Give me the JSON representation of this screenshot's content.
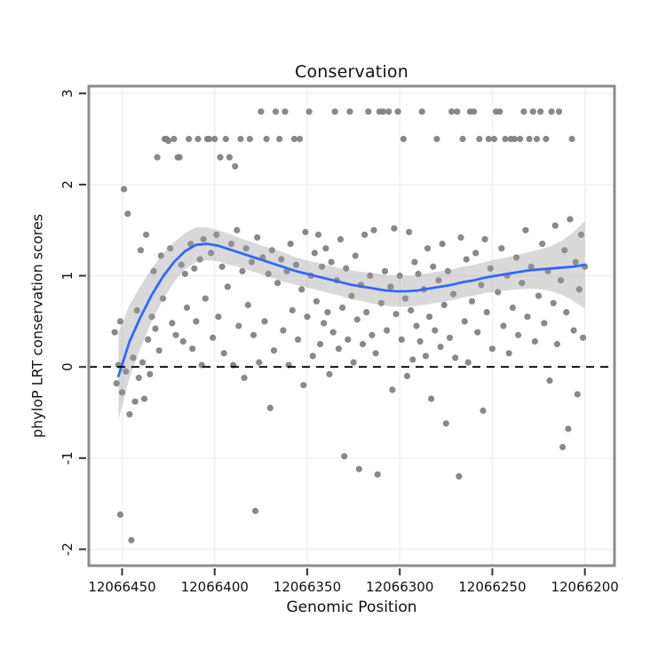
{
  "figure": {
    "title": "Conservation",
    "xlabel": "Genomic Position",
    "ylabel": "phyloP LRT conservation scores"
  },
  "chart_data": {
    "type": "scatter",
    "title": "Conservation",
    "xlabel": "Genomic Position",
    "ylabel": "phyloP LRT conservation scores",
    "x_axis": {
      "ticks": [
        12066450,
        12066400,
        12066350,
        12066300,
        12066250,
        12066200
      ],
      "reversed": true,
      "range": [
        12066468,
        12066184
      ]
    },
    "y_axis": {
      "ticks": [
        -2,
        -1,
        0,
        1,
        2,
        3
      ],
      "range": [
        -2.18,
        3.08
      ]
    },
    "zero_line": {
      "y": 0,
      "style": "dashed",
      "color": "#000000"
    },
    "grid": true,
    "legend": "none",
    "colors": {
      "points": "#7f7f7f",
      "smooth_line": "#3366FF",
      "confidence_band": "#9a9a9a",
      "panel_border": "#8c8c8c",
      "grid": "#f0f0f0",
      "tick": "#333333"
    },
    "points": [
      [
        12066454,
        0.38
      ],
      [
        12066453,
        -0.18
      ],
      [
        12066452,
        0.02
      ],
      [
        12066451,
        -1.62
      ],
      [
        12066451,
        0.5
      ],
      [
        12066450,
        -0.28
      ],
      [
        12066449,
        1.95
      ],
      [
        12066448,
        -0.05
      ],
      [
        12066447,
        1.68
      ],
      [
        12066446,
        -0.52
      ],
      [
        12066445,
        -1.9
      ],
      [
        12066444,
        0.1
      ],
      [
        12066443,
        -0.38
      ],
      [
        12066442,
        0.62
      ],
      [
        12066441,
        -0.12
      ],
      [
        12066440,
        1.28
      ],
      [
        12066439,
        0.05
      ],
      [
        12066438,
        -0.35
      ],
      [
        12066437,
        1.45
      ],
      [
        12066436,
        0.3
      ],
      [
        12066435,
        -0.08
      ],
      [
        12066434,
        0.55
      ],
      [
        12066433,
        1.05
      ],
      [
        12066432,
        0.42
      ],
      [
        12066431,
        2.3
      ],
      [
        12066430,
        0.18
      ],
      [
        12066429,
        1.22
      ],
      [
        12066428,
        0.75
      ],
      [
        12066427,
        2.5
      ],
      [
        12066426,
        2.5
      ],
      [
        12066425,
        2.48
      ],
      [
        12066424,
        1.3
      ],
      [
        12066423,
        0.48
      ],
      [
        12066422,
        2.5
      ],
      [
        12066421,
        0.35
      ],
      [
        12066420,
        2.3
      ],
      [
        12066419,
        2.3
      ],
      [
        12066418,
        1.12
      ],
      [
        12066417,
        0.28
      ],
      [
        12066416,
        1.02
      ],
      [
        12066415,
        0.65
      ],
      [
        12066414,
        2.5
      ],
      [
        12066413,
        1.35
      ],
      [
        12066412,
        0.2
      ],
      [
        12066411,
        1.08
      ],
      [
        12066410,
        0.5
      ],
      [
        12066409,
        2.5
      ],
      [
        12066408,
        1.18
      ],
      [
        12066407,
        0.02
      ],
      [
        12066406,
        1.4
      ],
      [
        12066405,
        0.75
      ],
      [
        12066404,
        2.5
      ],
      [
        12066403,
        2.5
      ],
      [
        12066402,
        1.25
      ],
      [
        12066401,
        0.32
      ],
      [
        12066400,
        2.5
      ],
      [
        12066399,
        1.45
      ],
      [
        12066398,
        0.55
      ],
      [
        12066397,
        2.3
      ],
      [
        12066396,
        1.1
      ],
      [
        12066395,
        0.15
      ],
      [
        12066394,
        2.5
      ],
      [
        12066393,
        0.88
      ],
      [
        12066392,
        2.3
      ],
      [
        12066391,
        1.35
      ],
      [
        12066390,
        0.02
      ],
      [
        12066389,
        2.2
      ],
      [
        12066388,
        1.5
      ],
      [
        12066387,
        0.45
      ],
      [
        12066386,
        2.5
      ],
      [
        12066385,
        1.05
      ],
      [
        12066384,
        -0.12
      ],
      [
        12066383,
        1.3
      ],
      [
        12066382,
        0.68
      ],
      [
        12066381,
        2.5
      ],
      [
        12066380,
        1.15
      ],
      [
        12066379,
        0.35
      ],
      [
        12066378,
        -1.58
      ],
      [
        12066377,
        1.42
      ],
      [
        12066376,
        0.05
      ],
      [
        12066375,
        2.8
      ],
      [
        12066374,
        1.2
      ],
      [
        12066373,
        0.5
      ],
      [
        12066372,
        2.5
      ],
      [
        12066371,
        1.02
      ],
      [
        12066370,
        -0.45
      ],
      [
        12066369,
        1.28
      ],
      [
        12066368,
        0.18
      ],
      [
        12066367,
        2.8
      ],
      [
        12066366,
        0.92
      ],
      [
        12066365,
        2.5
      ],
      [
        12066364,
        1.18
      ],
      [
        12066363,
        0.4
      ],
      [
        12066362,
        2.8
      ],
      [
        12066361,
        1.05
      ],
      [
        12066360,
        0.02
      ],
      [
        12066359,
        1.35
      ],
      [
        12066358,
        0.62
      ],
      [
        12066357,
        2.5
      ],
      [
        12066356,
        1.12
      ],
      [
        12066355,
        0.3
      ],
      [
        12066354,
        2.5
      ],
      [
        12066353,
        0.85
      ],
      [
        12066352,
        -0.2
      ],
      [
        12066351,
        1.48
      ],
      [
        12066350,
        0.55
      ],
      [
        12066349,
        2.8
      ],
      [
        12066348,
        1.0
      ],
      [
        12066347,
        0.12
      ],
      [
        12066346,
        1.25
      ],
      [
        12066345,
        0.72
      ],
      [
        12066344,
        1.45
      ],
      [
        12066343,
        0.25
      ],
      [
        12066342,
        1.1
      ],
      [
        12066341,
        0.48
      ],
      [
        12066340,
        1.3
      ],
      [
        12066339,
        0.6
      ],
      [
        12066338,
        -0.08
      ],
      [
        12066337,
        1.15
      ],
      [
        12066336,
        0.38
      ],
      [
        12066335,
        2.8
      ],
      [
        12066334,
        0.95
      ],
      [
        12066333,
        0.2
      ],
      [
        12066332,
        1.4
      ],
      [
        12066331,
        0.65
      ],
      [
        12066330,
        -0.98
      ],
      [
        12066329,
        1.08
      ],
      [
        12066328,
        0.3
      ],
      [
        12066327,
        2.8
      ],
      [
        12066326,
        0.78
      ],
      [
        12066325,
        0.05
      ],
      [
        12066324,
        1.22
      ],
      [
        12066323,
        0.52
      ],
      [
        12066322,
        -1.12
      ],
      [
        12066321,
        0.9
      ],
      [
        12066320,
        0.25
      ],
      [
        12066319,
        1.45
      ],
      [
        12066318,
        0.6
      ],
      [
        12066317,
        2.8
      ],
      [
        12066316,
        1.0
      ],
      [
        12066315,
        0.35
      ],
      [
        12066314,
        1.5
      ],
      [
        12066313,
        0.15
      ],
      [
        12066312,
        -1.18
      ],
      [
        12066311,
        2.8
      ],
      [
        12066310,
        0.7
      ],
      [
        12066309,
        2.8
      ],
      [
        12066308,
        1.05
      ],
      [
        12066307,
        0.4
      ],
      [
        12066306,
        2.8
      ],
      [
        12066305,
        0.88
      ],
      [
        12066304,
        -0.25
      ],
      [
        12066303,
        1.52
      ],
      [
        12066302,
        0.58
      ],
      [
        12066301,
        2.8
      ],
      [
        12066300,
        1.0
      ],
      [
        12066299,
        0.3
      ],
      [
        12066298,
        2.5
      ],
      [
        12066297,
        0.75
      ],
      [
        12066296,
        -0.1
      ],
      [
        12066295,
        1.48
      ],
      [
        12066294,
        0.62
      ],
      [
        12066293,
        0.08
      ],
      [
        12066292,
        1.15
      ],
      [
        12066291,
        0.45
      ],
      [
        12066290,
        1.02
      ],
      [
        12066289,
        0.28
      ],
      [
        12066288,
        2.8
      ],
      [
        12066287,
        0.85
      ],
      [
        12066286,
        0.12
      ],
      [
        12066285,
        1.3
      ],
      [
        12066284,
        0.55
      ],
      [
        12066283,
        -0.35
      ],
      [
        12066282,
        1.1
      ],
      [
        12066281,
        0.4
      ],
      [
        12066280,
        2.5
      ],
      [
        12066279,
        0.95
      ],
      [
        12066278,
        0.22
      ],
      [
        12066277,
        1.35
      ],
      [
        12066276,
        0.68
      ],
      [
        12066275,
        -0.62
      ],
      [
        12066274,
        1.05
      ],
      [
        12066273,
        0.32
      ],
      [
        12066272,
        2.8
      ],
      [
        12066271,
        0.8
      ],
      [
        12066270,
        0.1
      ],
      [
        12066269,
        2.8
      ],
      [
        12066268,
        -1.2
      ],
      [
        12066267,
        1.42
      ],
      [
        12066266,
        2.5
      ],
      [
        12066265,
        0.5
      ],
      [
        12066264,
        1.18
      ],
      [
        12066263,
        0.05
      ],
      [
        12066262,
        2.8
      ],
      [
        12066261,
        0.72
      ],
      [
        12066260,
        2.8
      ],
      [
        12066259,
        1.25
      ],
      [
        12066258,
        0.38
      ],
      [
        12066257,
        2.5
      ],
      [
        12066256,
        0.9
      ],
      [
        12066255,
        -0.48
      ],
      [
        12066254,
        1.4
      ],
      [
        12066253,
        0.6
      ],
      [
        12066252,
        2.5
      ],
      [
        12066251,
        1.08
      ],
      [
        12066250,
        0.2
      ],
      [
        12066249,
        2.5
      ],
      [
        12066248,
        2.8
      ],
      [
        12066247,
        0.82
      ],
      [
        12066246,
        2.8
      ],
      [
        12066245,
        1.3
      ],
      [
        12066244,
        0.45
      ],
      [
        12066243,
        2.5
      ],
      [
        12066242,
        1.0
      ],
      [
        12066241,
        0.15
      ],
      [
        12066240,
        2.5
      ],
      [
        12066239,
        0.65
      ],
      [
        12066238,
        2.5
      ],
      [
        12066237,
        1.2
      ],
      [
        12066236,
        0.35
      ],
      [
        12066235,
        2.5
      ],
      [
        12066234,
        0.92
      ],
      [
        12066233,
        2.8
      ],
      [
        12066232,
        1.5
      ],
      [
        12066231,
        0.55
      ],
      [
        12066230,
        2.5
      ],
      [
        12066229,
        1.1
      ],
      [
        12066228,
        2.8
      ],
      [
        12066227,
        0.28
      ],
      [
        12066226,
        2.5
      ],
      [
        12066225,
        0.78
      ],
      [
        12066224,
        2.8
      ],
      [
        12066223,
        1.35
      ],
      [
        12066222,
        0.48
      ],
      [
        12066221,
        2.5
      ],
      [
        12066220,
        1.05
      ],
      [
        12066219,
        -0.15
      ],
      [
        12066218,
        2.8
      ],
      [
        12066217,
        0.7
      ],
      [
        12066216,
        1.55
      ],
      [
        12066215,
        0.25
      ],
      [
        12066214,
        2.8
      ],
      [
        12066213,
        0.95
      ],
      [
        12066212,
        -0.88
      ],
      [
        12066211,
        1.28
      ],
      [
        12066210,
        0.6
      ],
      [
        12066209,
        -0.68
      ],
      [
        12066208,
        1.62
      ],
      [
        12066207,
        2.5
      ],
      [
        12066206,
        0.4
      ],
      [
        12066205,
        1.15
      ],
      [
        12066204,
        -0.3
      ],
      [
        12066203,
        0.85
      ],
      [
        12066202,
        1.45
      ],
      [
        12066201,
        0.32
      ],
      [
        12066200,
        1.1
      ]
    ],
    "smooth": {
      "x": [
        12066452,
        12066446,
        12066440,
        12066434,
        12066428,
        12066422,
        12066416,
        12066410,
        12066404,
        12066398,
        12066392,
        12066386,
        12066380,
        12066374,
        12066368,
        12066362,
        12066356,
        12066350,
        12066344,
        12066338,
        12066332,
        12066326,
        12066320,
        12066314,
        12066308,
        12066302,
        12066296,
        12066290,
        12066284,
        12066278,
        12066272,
        12066266,
        12066260,
        12066254,
        12066248,
        12066242,
        12066236,
        12066230,
        12066224,
        12066218,
        12066212,
        12066206,
        12066200
      ],
      "fit": [
        -0.1,
        0.28,
        0.55,
        0.79,
        0.99,
        1.15,
        1.27,
        1.34,
        1.35,
        1.33,
        1.29,
        1.25,
        1.21,
        1.17,
        1.13,
        1.09,
        1.05,
        1.02,
        0.99,
        0.96,
        0.93,
        0.9,
        0.88,
        0.86,
        0.84,
        0.83,
        0.83,
        0.84,
        0.86,
        0.88,
        0.9,
        0.93,
        0.95,
        0.98,
        1.0,
        1.02,
        1.04,
        1.06,
        1.07,
        1.08,
        1.09,
        1.1,
        1.12
      ],
      "lower": [
        -0.58,
        -0.12,
        0.21,
        0.5,
        0.74,
        0.93,
        1.07,
        1.15,
        1.17,
        1.16,
        1.12,
        1.09,
        1.05,
        1.01,
        0.97,
        0.93,
        0.9,
        0.87,
        0.84,
        0.81,
        0.78,
        0.74,
        0.72,
        0.69,
        0.67,
        0.66,
        0.66,
        0.67,
        0.69,
        0.71,
        0.73,
        0.76,
        0.78,
        0.81,
        0.82,
        0.84,
        0.85,
        0.86,
        0.85,
        0.83,
        0.79,
        0.72,
        0.64
      ],
      "upper": [
        0.38,
        0.68,
        0.89,
        1.08,
        1.24,
        1.37,
        1.47,
        1.53,
        1.53,
        1.5,
        1.46,
        1.41,
        1.37,
        1.33,
        1.29,
        1.25,
        1.2,
        1.17,
        1.14,
        1.11,
        1.08,
        1.06,
        1.04,
        1.03,
        1.01,
        1.0,
        1.0,
        1.01,
        1.03,
        1.05,
        1.07,
        1.1,
        1.12,
        1.15,
        1.18,
        1.2,
        1.23,
        1.26,
        1.29,
        1.33,
        1.39,
        1.48,
        1.6
      ]
    }
  }
}
